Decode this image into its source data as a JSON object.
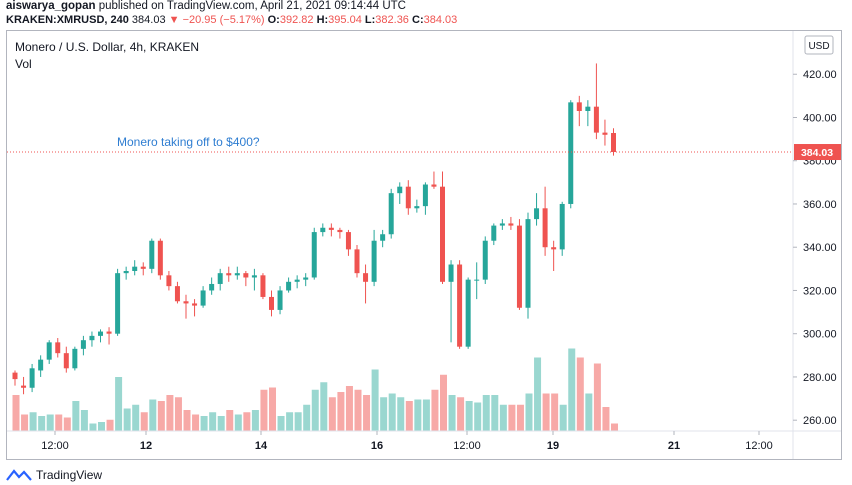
{
  "header": {
    "author": "aiswarya_gopan",
    "published_text": "published on TradingView.com, April 21, 2021 09:14:44 UTC",
    "symbol": "KRAKEN:XMRUSD, 240",
    "last": "384.03",
    "arrow": "▼",
    "change": "−20.95 (−5.17%)",
    "o_label": "O:",
    "o_value": "392.82",
    "h_label": "H:",
    "h_value": "395.04",
    "l_label": "L:",
    "l_value": "382.36",
    "c_label": "C:",
    "c_value": "384.03"
  },
  "legend": {
    "title": "Monero / U.S. Dollar, 4h, KRAKEN",
    "vol": "Vol"
  },
  "annotation": "Monero taking off to $400?",
  "currency": "USD",
  "price_tag": "384.03",
  "footer": {
    "brand": "TradingView"
  },
  "colors": {
    "up": "#26a69a",
    "down": "#ef5350",
    "vol_up": "#9ad7d0",
    "vol_down": "#f7a9a7",
    "note": "#2e7dd1"
  },
  "chart_data": {
    "type": "candlestick",
    "y_axis_ticks": [
      260,
      280,
      300,
      320,
      340,
      360,
      380,
      400,
      420
    ],
    "ylim": [
      255,
      440
    ],
    "x_tick_labels": [
      "12:00",
      "12",
      "14",
      "16",
      "12:00",
      "19",
      "21",
      "12:00"
    ],
    "last_price": 384.03,
    "candles": [
      {
        "o": 282,
        "h": 283,
        "l": 276,
        "c": 279,
        "v": 0.48
      },
      {
        "o": 276,
        "h": 280,
        "l": 272,
        "c": 275,
        "v": 0.22
      },
      {
        "o": 275,
        "h": 286,
        "l": 273,
        "c": 284,
        "v": 0.25
      },
      {
        "o": 283,
        "h": 290,
        "l": 280,
        "c": 288,
        "v": 0.2
      },
      {
        "o": 288,
        "h": 297,
        "l": 286,
        "c": 296,
        "v": 0.22
      },
      {
        "o": 296,
        "h": 298,
        "l": 289,
        "c": 291,
        "v": 0.22
      },
      {
        "o": 291,
        "h": 294,
        "l": 282,
        "c": 284,
        "v": 0.18
      },
      {
        "o": 284,
        "h": 294,
        "l": 283,
        "c": 293,
        "v": 0.4
      },
      {
        "o": 293,
        "h": 299,
        "l": 290,
        "c": 297,
        "v": 0.28
      },
      {
        "o": 297,
        "h": 301,
        "l": 294,
        "c": 299,
        "v": 0.1
      },
      {
        "o": 299,
        "h": 302,
        "l": 296,
        "c": 301,
        "v": 0.12
      },
      {
        "o": 301,
        "h": 303,
        "l": 295,
        "c": 300,
        "v": 0.15
      },
      {
        "o": 300,
        "h": 330,
        "l": 299,
        "c": 328,
        "v": 0.72
      },
      {
        "o": 328,
        "h": 331,
        "l": 325,
        "c": 329,
        "v": 0.3
      },
      {
        "o": 329,
        "h": 334,
        "l": 327,
        "c": 331,
        "v": 0.35
      },
      {
        "o": 331,
        "h": 333,
        "l": 327,
        "c": 330,
        "v": 0.25
      },
      {
        "o": 330,
        "h": 344,
        "l": 328,
        "c": 343,
        "v": 0.42
      },
      {
        "o": 343,
        "h": 344,
        "l": 325,
        "c": 327,
        "v": 0.4
      },
      {
        "o": 327,
        "h": 329,
        "l": 320,
        "c": 322,
        "v": 0.48
      },
      {
        "o": 322,
        "h": 324,
        "l": 314,
        "c": 315,
        "v": 0.45
      },
      {
        "o": 315,
        "h": 318,
        "l": 307,
        "c": 314,
        "v": 0.28
      },
      {
        "o": 314,
        "h": 316,
        "l": 308,
        "c": 313,
        "v": 0.22
      },
      {
        "o": 313,
        "h": 322,
        "l": 312,
        "c": 320,
        "v": 0.2
      },
      {
        "o": 320,
        "h": 326,
        "l": 318,
        "c": 323,
        "v": 0.25
      },
      {
        "o": 323,
        "h": 330,
        "l": 320,
        "c": 328,
        "v": 0.2
      },
      {
        "o": 328,
        "h": 331,
        "l": 324,
        "c": 327,
        "v": 0.28
      },
      {
        "o": 327,
        "h": 331,
        "l": 325,
        "c": 328,
        "v": 0.22
      },
      {
        "o": 328,
        "h": 329,
        "l": 322,
        "c": 326,
        "v": 0.25
      },
      {
        "o": 326,
        "h": 330,
        "l": 320,
        "c": 327,
        "v": 0.28
      },
      {
        "o": 327,
        "h": 328,
        "l": 316,
        "c": 317,
        "v": 0.55
      },
      {
        "o": 317,
        "h": 320,
        "l": 308,
        "c": 311,
        "v": 0.58
      },
      {
        "o": 311,
        "h": 322,
        "l": 309,
        "c": 320,
        "v": 0.2
      },
      {
        "o": 320,
        "h": 326,
        "l": 319,
        "c": 324,
        "v": 0.25
      },
      {
        "o": 324,
        "h": 327,
        "l": 321,
        "c": 325,
        "v": 0.25
      },
      {
        "o": 325,
        "h": 328,
        "l": 322,
        "c": 326,
        "v": 0.35
      },
      {
        "o": 326,
        "h": 349,
        "l": 325,
        "c": 347,
        "v": 0.55
      },
      {
        "o": 347,
        "h": 351,
        "l": 345,
        "c": 349,
        "v": 0.65
      },
      {
        "o": 349,
        "h": 351,
        "l": 345,
        "c": 348,
        "v": 0.45
      },
      {
        "o": 348,
        "h": 349,
        "l": 344,
        "c": 347,
        "v": 0.52
      },
      {
        "o": 347,
        "h": 348,
        "l": 336,
        "c": 339,
        "v": 0.6
      },
      {
        "o": 339,
        "h": 341,
        "l": 326,
        "c": 328,
        "v": 0.55
      },
      {
        "o": 328,
        "h": 332,
        "l": 314,
        "c": 324,
        "v": 0.48
      },
      {
        "o": 324,
        "h": 348,
        "l": 322,
        "c": 343,
        "v": 0.82
      },
      {
        "o": 343,
        "h": 348,
        "l": 340,
        "c": 346,
        "v": 0.45
      },
      {
        "o": 346,
        "h": 367,
        "l": 344,
        "c": 365,
        "v": 0.5
      },
      {
        "o": 365,
        "h": 370,
        "l": 360,
        "c": 368,
        "v": 0.45
      },
      {
        "o": 368,
        "h": 371,
        "l": 355,
        "c": 358,
        "v": 0.4
      },
      {
        "o": 358,
        "h": 362,
        "l": 356,
        "c": 359,
        "v": 0.42
      },
      {
        "o": 359,
        "h": 370,
        "l": 355,
        "c": 369,
        "v": 0.42
      },
      {
        "o": 369,
        "h": 375,
        "l": 367,
        "c": 368,
        "v": 0.55
      },
      {
        "o": 368,
        "h": 375,
        "l": 323,
        "c": 324,
        "v": 0.75
      },
      {
        "o": 324,
        "h": 334,
        "l": 296,
        "c": 332,
        "v": 0.48
      },
      {
        "o": 332,
        "h": 334,
        "l": 293,
        "c": 294,
        "v": 0.45
      },
      {
        "o": 294,
        "h": 326,
        "l": 293,
        "c": 325,
        "v": 0.4
      },
      {
        "o": 325,
        "h": 333,
        "l": 316,
        "c": 325,
        "v": 0.38
      },
      {
        "o": 325,
        "h": 345,
        "l": 323,
        "c": 343,
        "v": 0.48
      },
      {
        "o": 343,
        "h": 351,
        "l": 341,
        "c": 350,
        "v": 0.48
      },
      {
        "o": 350,
        "h": 353,
        "l": 348,
        "c": 351,
        "v": 0.35
      },
      {
        "o": 351,
        "h": 354,
        "l": 348,
        "c": 350,
        "v": 0.35
      },
      {
        "o": 350,
        "h": 353,
        "l": 311,
        "c": 312,
        "v": 0.35
      },
      {
        "o": 312,
        "h": 356,
        "l": 307,
        "c": 353,
        "v": 0.5
      },
      {
        "o": 353,
        "h": 365,
        "l": 350,
        "c": 358,
        "v": 0.98
      },
      {
        "o": 358,
        "h": 368,
        "l": 336,
        "c": 340,
        "v": 0.5
      },
      {
        "o": 340,
        "h": 343,
        "l": 329,
        "c": 339,
        "v": 0.5
      },
      {
        "o": 339,
        "h": 361,
        "l": 336,
        "c": 360,
        "v": 0.35
      },
      {
        "o": 360,
        "h": 408,
        "l": 358,
        "c": 407,
        "v": 1.1
      },
      {
        "o": 407,
        "h": 410,
        "l": 396,
        "c": 403,
        "v": 0.98
      },
      {
        "o": 403,
        "h": 408,
        "l": 396,
        "c": 405,
        "v": 0.5
      },
      {
        "o": 405,
        "h": 425,
        "l": 390,
        "c": 393,
        "v": 0.9
      },
      {
        "o": 393,
        "h": 399,
        "l": 387,
        "c": 392,
        "v": 0.32
      },
      {
        "o": 392.82,
        "h": 395.04,
        "l": 382.36,
        "c": 384.03,
        "v": 0.1
      }
    ]
  }
}
